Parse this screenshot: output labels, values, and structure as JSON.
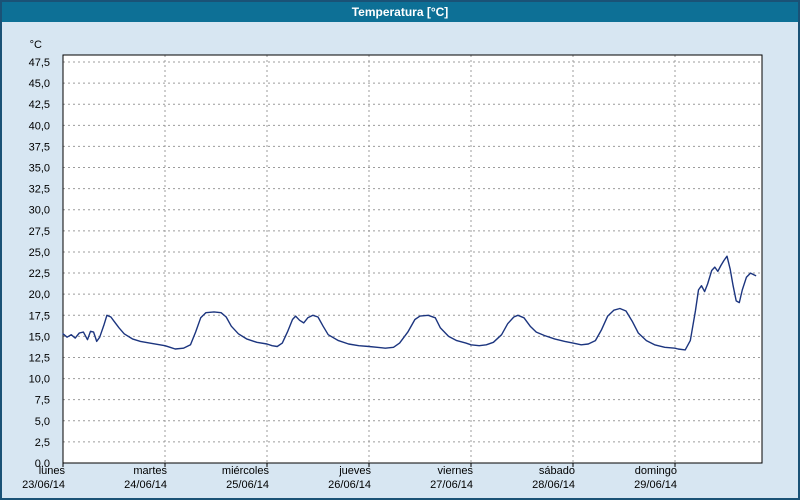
{
  "window": {
    "title": "Temperatura [°C]"
  },
  "colors": {
    "window_background": "#d7e6f2",
    "window_border": "#1a5276",
    "titlebar_background": "#0d7096",
    "titlebar_text": "#ffffff",
    "plot_background": "#ffffff",
    "grid": "#9c9c9c",
    "axis": "#000000",
    "line": "#1c357f"
  },
  "chart": {
    "y_axis": {
      "unit_label": "°C",
      "tick_labels": [
        "47,5",
        "45,0",
        "42,5",
        "40,0",
        "37,5",
        "35,0",
        "32,5",
        "30,0",
        "27,5",
        "25,0",
        "22,5",
        "20,0",
        "17,5",
        "15,0",
        "12,5",
        "10,0",
        "7,5",
        "5,0",
        "2,5",
        "0,0"
      ],
      "min": 0,
      "max": 47.5,
      "step": 2.5
    },
    "x_axis": {
      "days": [
        {
          "name": "lunes",
          "date": "23/06/14"
        },
        {
          "name": "martes",
          "date": "24/06/14"
        },
        {
          "name": "miércoles",
          "date": "25/06/14"
        },
        {
          "name": "jueves",
          "date": "26/06/14"
        },
        {
          "name": "viernes",
          "date": "27/06/14"
        },
        {
          "name": "sábado",
          "date": "28/06/14"
        },
        {
          "name": "domingo",
          "date": "29/06/14"
        }
      ]
    }
  },
  "chart_data": {
    "type": "line",
    "title": "Temperatura [°C]",
    "xlabel": "",
    "ylabel": "°C",
    "ylim": [
      0,
      47.5
    ],
    "y_tick_step": 2.5,
    "grid": true,
    "legend_position": "none",
    "x_unit": "days since 23/06/14 00:00",
    "x_categories": [
      "lunes 23/06/14",
      "martes 24/06/14",
      "miércoles 25/06/14",
      "jueves 26/06/14",
      "viernes 27/06/14",
      "sábado 28/06/14",
      "domingo 29/06/14"
    ],
    "series": [
      {
        "name": "Temperatura",
        "color": "#1c357f",
        "x_days": [
          0.0,
          0.04,
          0.08,
          0.12,
          0.16,
          0.2,
          0.24,
          0.27,
          0.3,
          0.33,
          0.36,
          0.4,
          0.43,
          0.47,
          0.5,
          0.55,
          0.6,
          0.68,
          0.76,
          0.85,
          0.95,
          1.0,
          1.05,
          1.1,
          1.18,
          1.25,
          1.3,
          1.35,
          1.4,
          1.48,
          1.55,
          1.6,
          1.65,
          1.72,
          1.8,
          1.9,
          2.0,
          2.05,
          2.1,
          2.15,
          2.2,
          2.25,
          2.28,
          2.32,
          2.36,
          2.4,
          2.45,
          2.5,
          2.55,
          2.6,
          2.7,
          2.8,
          2.9,
          3.0,
          3.08,
          3.16,
          3.24,
          3.3,
          3.38,
          3.45,
          3.5,
          3.58,
          3.65,
          3.7,
          3.78,
          3.86,
          3.95,
          4.0,
          4.08,
          4.15,
          4.22,
          4.3,
          4.36,
          4.42,
          4.46,
          4.52,
          4.58,
          4.64,
          4.72,
          4.82,
          4.92,
          5.0,
          5.08,
          5.15,
          5.22,
          5.28,
          5.34,
          5.4,
          5.46,
          5.52,
          5.58,
          5.64,
          5.72,
          5.8,
          5.9,
          6.0,
          6.03,
          6.1,
          6.15,
          6.2,
          6.23,
          6.26,
          6.29,
          6.32,
          6.36,
          6.39,
          6.42,
          6.45,
          6.48,
          6.51,
          6.54,
          6.57,
          6.6,
          6.63,
          6.66,
          6.7,
          6.74,
          6.79
        ],
        "values": [
          15.3,
          14.9,
          15.2,
          14.8,
          15.4,
          15.5,
          14.6,
          15.6,
          15.5,
          14.4,
          14.9,
          16.3,
          17.5,
          17.3,
          16.8,
          16.0,
          15.3,
          14.7,
          14.4,
          14.2,
          14.0,
          13.9,
          13.7,
          13.5,
          13.6,
          14.0,
          15.5,
          17.2,
          17.8,
          17.9,
          17.8,
          17.3,
          16.2,
          15.3,
          14.7,
          14.3,
          14.1,
          13.9,
          13.8,
          14.2,
          15.5,
          17.0,
          17.4,
          16.9,
          16.6,
          17.2,
          17.5,
          17.3,
          16.2,
          15.2,
          14.5,
          14.1,
          13.9,
          13.8,
          13.7,
          13.6,
          13.7,
          14.2,
          15.5,
          17.0,
          17.4,
          17.5,
          17.2,
          16.0,
          15.0,
          14.5,
          14.2,
          14.0,
          13.9,
          14.0,
          14.3,
          15.2,
          16.5,
          17.3,
          17.5,
          17.2,
          16.2,
          15.5,
          15.1,
          14.7,
          14.4,
          14.2,
          14.0,
          14.1,
          14.5,
          15.8,
          17.4,
          18.1,
          18.3,
          18.0,
          16.8,
          15.4,
          14.5,
          14.0,
          13.7,
          13.6,
          13.5,
          13.4,
          14.5,
          18.0,
          20.5,
          21.0,
          20.3,
          21.2,
          22.8,
          23.2,
          22.7,
          23.4,
          24.0,
          24.5,
          23.0,
          21.0,
          19.2,
          19.0,
          20.5,
          22.0,
          22.5,
          22.2
        ]
      }
    ]
  }
}
